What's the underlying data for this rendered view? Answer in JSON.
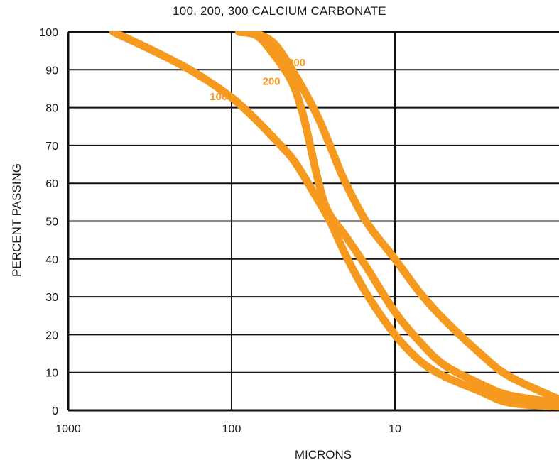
{
  "chart_data": {
    "type": "line",
    "title": "100, 200, 300 CALCIUM CARBONATE",
    "xlabel": "MICRONS",
    "ylabel": "PERCENT PASSING",
    "x_scale": "log",
    "x_reversed": true,
    "xlim": [
      1000,
      1
    ],
    "ylim": [
      0,
      100
    ],
    "x_ticks": [
      1000,
      100,
      10
    ],
    "x_tick_labels": [
      "1000",
      "100",
      "10"
    ],
    "y_ticks": [
      0,
      10,
      20,
      30,
      40,
      50,
      60,
      70,
      80,
      90,
      100
    ],
    "y_tick_labels": [
      "0",
      "10",
      "20",
      "30",
      "40",
      "50",
      "60",
      "70",
      "80",
      "90",
      "100"
    ],
    "grid": true,
    "legend": "none",
    "series_color": "#f59a1e",
    "series": [
      {
        "name": "100",
        "x": [
          530,
          300,
          180,
          110,
          80,
          50,
          40,
          30,
          25,
          20,
          15,
          10,
          7,
          5,
          3,
          2,
          1
        ],
        "y": [
          100,
          95,
          90,
          84,
          79,
          70,
          65,
          56,
          50,
          41,
          31,
          20,
          13,
          9,
          5,
          2,
          1
        ]
      },
      {
        "name": "200",
        "x": [
          90,
          70,
          55,
          43,
          37,
          33,
          30,
          26,
          20,
          15,
          10,
          7,
          5,
          3,
          2,
          1
        ],
        "y": [
          100,
          99,
          94,
          87,
          79,
          70,
          62,
          53,
          46,
          38,
          26,
          18,
          12,
          7,
          4,
          2
        ]
      },
      {
        "name": "300",
        "x": [
          75,
          55,
          40,
          30,
          25,
          21,
          17,
          14,
          10,
          7,
          5,
          3,
          2,
          1
        ],
        "y": [
          100,
          97,
          88,
          78,
          70,
          62,
          54,
          48,
          40,
          31,
          24,
          15,
          9,
          3
        ]
      }
    ]
  }
}
